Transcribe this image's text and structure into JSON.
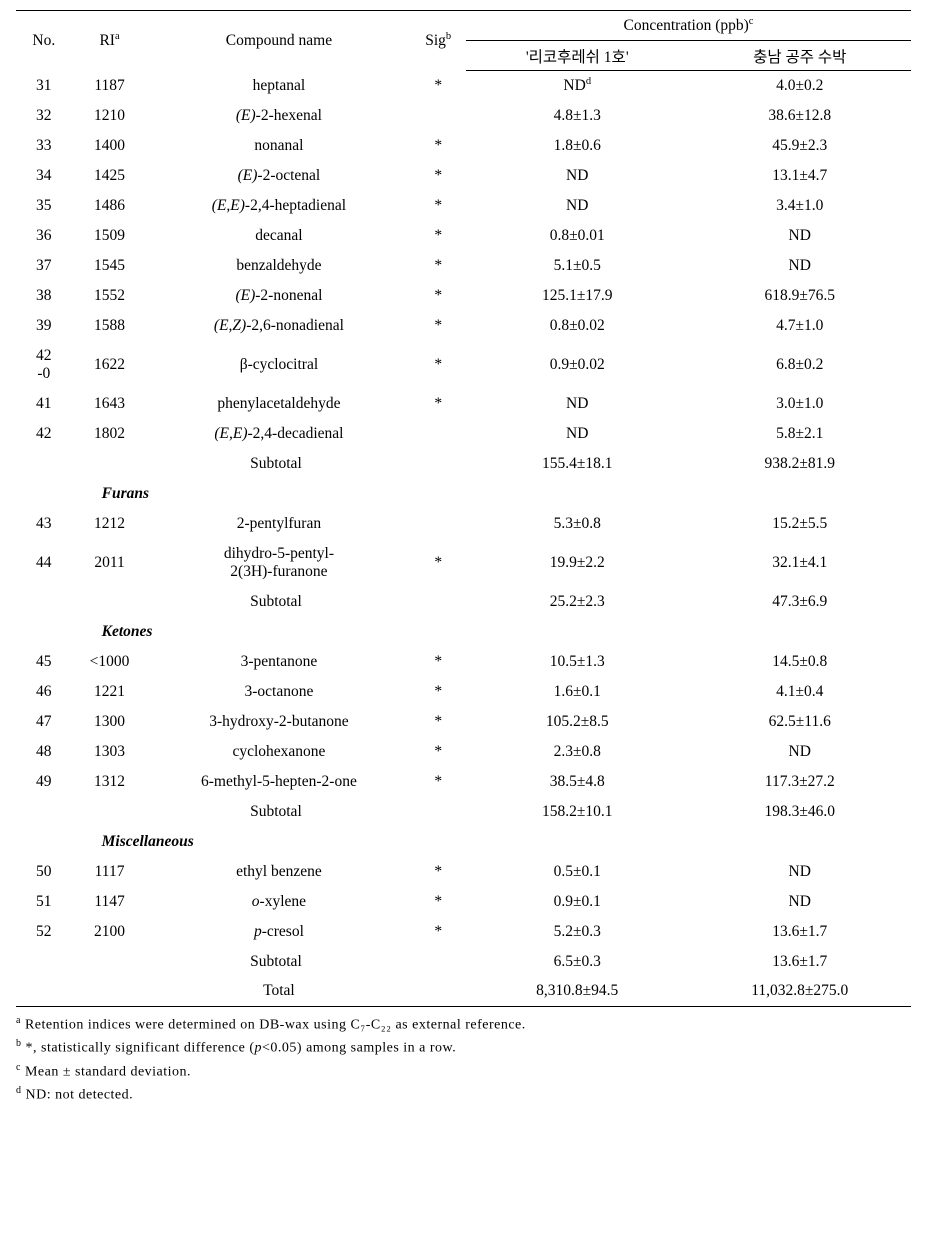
{
  "header": {
    "no": "No.",
    "ri": "RI",
    "ri_sup": "a",
    "compound": "Compound name",
    "sig": "Sig",
    "sig_sup": "b",
    "conc": "Concentration (ppb)",
    "conc_sup": "c",
    "col1": "'리코후레쉬 1호'",
    "col2": "충남 공주 수박"
  },
  "rows": [
    {
      "no": "31",
      "ri": "1187",
      "name": "heptanal",
      "sig": "*",
      "v1": "ND",
      "v1_sup": "d",
      "v2": "4.0±0.2"
    },
    {
      "no": "32",
      "ri": "1210",
      "name_ital": "(E)",
      "name_rest": "-2-hexenal",
      "sig": "",
      "v1": "4.8±1.3",
      "v2": "38.6±12.8"
    },
    {
      "no": "33",
      "ri": "1400",
      "name": "nonanal",
      "sig": "*",
      "v1": "1.8±0.6",
      "v2": "45.9±2.3"
    },
    {
      "no": "34",
      "ri": "1425",
      "name_ital": "(E)",
      "name_rest": "-2-octenal",
      "sig": "*",
      "v1": "ND",
      "v2": "13.1±4.7"
    },
    {
      "no": "35",
      "ri": "1486",
      "name_ital": "(E,E)",
      "name_rest": "-2,4-heptadienal",
      "sig": "*",
      "v1": "ND",
      "v2": "3.4±1.0"
    },
    {
      "no": "36",
      "ri": "1509",
      "name": "decanal",
      "sig": "*",
      "v1": "0.8±0.01",
      "v2": "ND"
    },
    {
      "no": "37",
      "ri": "1545",
      "name": "benzaldehyde",
      "sig": "*",
      "v1": "5.1±0.5",
      "v2": "ND"
    },
    {
      "no": "38",
      "ri": "1552",
      "name_ital": "(E)",
      "name_rest": "-2-nonenal",
      "sig": "*",
      "v1": "125.1±17.9",
      "v2": "618.9±76.5"
    },
    {
      "no": "39",
      "ri": "1588",
      "name_ital": "(E,Z)",
      "name_rest": "-2,6-nonadienal",
      "sig": "*",
      "v1": "0.8±0.02",
      "v2": "4.7±1.0"
    },
    {
      "no": "42\n-0",
      "ri": "1622",
      "name": "β-cyclocitral",
      "sig": "*",
      "v1": "0.9±0.02",
      "v2": "6.8±0.2",
      "tall": true
    },
    {
      "no": "41",
      "ri": "1643",
      "name": "phenylacetaldehyde",
      "sig": "*",
      "v1": "ND",
      "v2": "3.0±1.0"
    },
    {
      "no": "42",
      "ri": "1802",
      "name_ital": "(E,E)",
      "name_rest": "-2,4-decadienal",
      "sig": "",
      "v1": "ND",
      "v2": "5.8±2.1"
    }
  ],
  "subtotal1": {
    "label": "Subtotal",
    "v1": "155.4±18.1",
    "v2": "938.2±81.9"
  },
  "group_furans": "Furans",
  "rows_furans": [
    {
      "no": "43",
      "ri": "1212",
      "name": "2-pentylfuran",
      "sig": "",
      "v1": "5.3±0.8",
      "v2": "15.2±5.5"
    },
    {
      "no": "44",
      "ri": "2011",
      "name_l1": "dihydro-5-pentyl-",
      "name_l2": "2(3H)-furanone",
      "sig": "*",
      "v1": "19.9±2.2",
      "v2": "32.1±4.1",
      "tall": true
    }
  ],
  "subtotal2": {
    "label": "Subtotal",
    "v1": "25.2±2.3",
    "v2": "47.3±6.9"
  },
  "group_ketones": "Ketones",
  "rows_ketones": [
    {
      "no": "45",
      "ri": "<1000",
      "name": "3-pentanone",
      "sig": "*",
      "v1": "10.5±1.3",
      "v2": "14.5±0.8"
    },
    {
      "no": "46",
      "ri": "1221",
      "name": "3-octanone",
      "sig": "*",
      "v1": "1.6±0.1",
      "v2": "4.1±0.4"
    },
    {
      "no": "47",
      "ri": "1300",
      "name": "3-hydroxy-2-butanone",
      "sig": "*",
      "v1": "105.2±8.5",
      "v2": "62.5±11.6"
    },
    {
      "no": "48",
      "ri": "1303",
      "name": "cyclohexanone",
      "sig": "*",
      "v1": "2.3±0.8",
      "v2": "ND"
    },
    {
      "no": "49",
      "ri": "1312",
      "name": "6-methyl-5-hepten-2-one",
      "sig": "*",
      "v1": "38.5±4.8",
      "v2": "117.3±27.2"
    }
  ],
  "subtotal3": {
    "label": "Subtotal",
    "v1": "158.2±10.1",
    "v2": "198.3±46.0"
  },
  "group_misc": "Miscellaneous",
  "rows_misc": [
    {
      "no": "50",
      "ri": "1117",
      "name": "ethyl benzene",
      "sig": "*",
      "v1": "0.5±0.1",
      "v2": "ND"
    },
    {
      "no": "51",
      "ri": "1147",
      "name_ital": "o",
      "name_rest": "-xylene",
      "sig": "*",
      "v1": "0.9±0.1",
      "v2": "ND"
    },
    {
      "no": "52",
      "ri": "2100",
      "name_ital": "p",
      "name_rest": "-cresol",
      "sig": "*",
      "v1": "5.2±0.3",
      "v2": "13.6±1.7"
    }
  ],
  "subtotal4": {
    "label": "Subtotal",
    "v1": "6.5±0.3",
    "v2": "13.6±1.7"
  },
  "total": {
    "label": "Total",
    "v1": "8,310.8±94.5",
    "v2": "11,032.8±275.0"
  },
  "footnotes": {
    "a_sup": "a",
    "a": " Retention indices were determined on DB-wax using C₇-C₂₂ as external reference.",
    "b_sup": "b",
    "b_pre": " *, statistically significant difference (",
    "b_ital": "p",
    "b_post": "<0.05) among samples in a row.",
    "c_sup": "c",
    "c": " Mean ± standard deviation.",
    "d_sup": "d",
    "d": " ND: not detected."
  }
}
